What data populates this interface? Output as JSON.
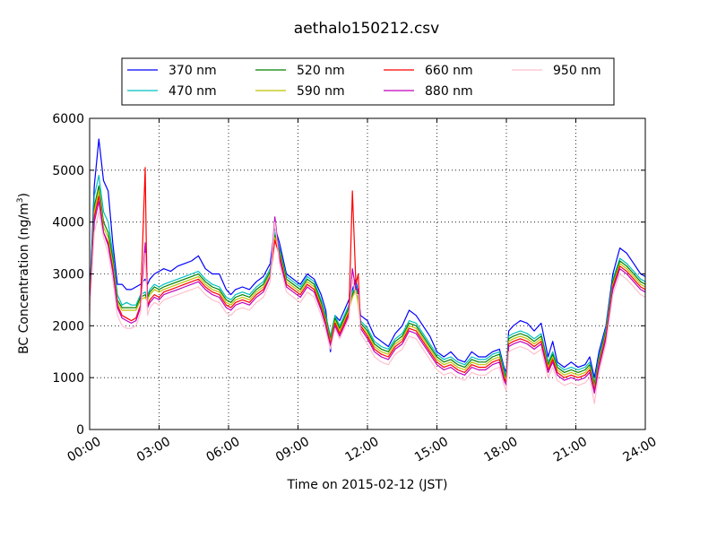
{
  "chart_data": {
    "type": "line",
    "title": "aethalo150212.csv",
    "xlabel": "Time on 2015-02-12 (JST)",
    "ylabel_main": "BC Concentration (ng/m",
    "ylabel_sup": "3",
    "ylabel_close": ")",
    "x_unit": "hours since 00:00",
    "xlim": [
      0,
      24
    ],
    "ylim": [
      0,
      6000
    ],
    "xticks": [
      {
        "value": 0,
        "label": "00:00"
      },
      {
        "value": 3,
        "label": "03:00"
      },
      {
        "value": 6,
        "label": "06:00"
      },
      {
        "value": 9,
        "label": "09:00"
      },
      {
        "value": 12,
        "label": "12:00"
      },
      {
        "value": 15,
        "label": "15:00"
      },
      {
        "value": 18,
        "label": "18:00"
      },
      {
        "value": 21,
        "label": "21:00"
      },
      {
        "value": 24,
        "label": "24:00"
      }
    ],
    "yticks": [
      {
        "value": 0,
        "label": "0"
      },
      {
        "value": 1000,
        "label": "1000"
      },
      {
        "value": 2000,
        "label": "2000"
      },
      {
        "value": 3000,
        "label": "3000"
      },
      {
        "value": 4000,
        "label": "4000"
      },
      {
        "value": 5000,
        "label": "5000"
      },
      {
        "value": 6000,
        "label": "6000"
      }
    ],
    "grid": true,
    "legend_position": "top",
    "x": [
      0,
      0.2,
      0.4,
      0.6,
      0.8,
      1.0,
      1.2,
      1.4,
      1.6,
      1.8,
      2.0,
      2.2,
      2.4,
      2.45,
      2.5,
      2.6,
      2.8,
      3.0,
      3.2,
      3.5,
      3.8,
      4.1,
      4.4,
      4.7,
      5.0,
      5.3,
      5.6,
      5.9,
      6.1,
      6.3,
      6.6,
      6.9,
      7.2,
      7.5,
      7.8,
      8.0,
      8.2,
      8.5,
      8.8,
      9.1,
      9.4,
      9.7,
      10.0,
      10.2,
      10.4,
      10.6,
      10.8,
      11.0,
      11.2,
      11.35,
      11.5,
      11.6,
      11.7,
      12.0,
      12.3,
      12.6,
      12.9,
      13.2,
      13.5,
      13.8,
      14.1,
      14.4,
      14.7,
      15.0,
      15.3,
      15.6,
      15.9,
      16.2,
      16.5,
      16.8,
      17.1,
      17.4,
      17.7,
      17.9,
      18.0,
      18.1,
      18.3,
      18.6,
      18.9,
      19.2,
      19.5,
      19.8,
      20.0,
      20.2,
      20.5,
      20.8,
      21.1,
      21.4,
      21.6,
      21.8,
      22.0,
      22.3,
      22.6,
      22.9,
      23.2,
      23.5,
      23.8,
      24.0
    ],
    "series": [
      {
        "name": "370 nm",
        "color": "#0000ff",
        "values": [
          2500,
          4700,
          5600,
          4800,
          4600,
          3600,
          2800,
          2800,
          2700,
          2700,
          2750,
          2800,
          2900,
          2850,
          2800,
          2900,
          3000,
          3050,
          3100,
          3050,
          3150,
          3200,
          3250,
          3350,
          3100,
          3000,
          3000,
          2700,
          2600,
          2700,
          2750,
          2700,
          2850,
          2950,
          3200,
          3900,
          3600,
          3000,
          2900,
          2800,
          3000,
          2900,
          2600,
          2300,
          1500,
          2200,
          2100,
          2300,
          2500,
          2700,
          2900,
          2600,
          2200,
          2100,
          1800,
          1700,
          1600,
          1850,
          2000,
          2300,
          2200,
          2000,
          1800,
          1500,
          1400,
          1500,
          1350,
          1300,
          1500,
          1400,
          1400,
          1500,
          1550,
          1200,
          1100,
          1900,
          2000,
          2100,
          2050,
          1900,
          2050,
          1400,
          1700,
          1300,
          1200,
          1300,
          1200,
          1250,
          1400,
          1000,
          1500,
          2000,
          3000,
          3500,
          3400,
          3200,
          3000,
          2950
        ]
      },
      {
        "name": "470 nm",
        "color": "#00bfbf",
        "values": [
          2400,
          4500,
          4900,
          4200,
          4000,
          3400,
          2600,
          2400,
          2450,
          2400,
          2400,
          2600,
          2650,
          2600,
          2600,
          2700,
          2800,
          2750,
          2800,
          2850,
          2900,
          2950,
          3000,
          3050,
          2900,
          2800,
          2750,
          2550,
          2500,
          2600,
          2650,
          2600,
          2750,
          2850,
          3100,
          3800,
          3500,
          2950,
          2850,
          2750,
          2950,
          2850,
          2500,
          2200,
          1800,
          2200,
          2000,
          2200,
          2400,
          2650,
          2800,
          2500,
          2100,
          1950,
          1700,
          1600,
          1550,
          1750,
          1850,
          2100,
          2050,
          1850,
          1650,
          1450,
          1350,
          1400,
          1300,
          1250,
          1400,
          1350,
          1350,
          1450,
          1500,
          1150,
          1050,
          1800,
          1850,
          1900,
          1850,
          1750,
          1850,
          1300,
          1500,
          1250,
          1150,
          1200,
          1150,
          1200,
          1300,
          900,
          1400,
          1950,
          2900,
          3300,
          3200,
          3050,
          2900,
          2850
        ]
      },
      {
        "name": "520 nm",
        "color": "#008000",
        "values": [
          2400,
          4300,
          4700,
          4000,
          3800,
          3300,
          2500,
          2350,
          2350,
          2350,
          2350,
          2550,
          2600,
          2550,
          2550,
          2650,
          2750,
          2700,
          2750,
          2800,
          2850,
          2900,
          2950,
          3000,
          2850,
          2750,
          2700,
          2500,
          2450,
          2550,
          2600,
          2550,
          2700,
          2800,
          3050,
          3750,
          3450,
          2900,
          2800,
          2700,
          2900,
          2800,
          2450,
          2150,
          1750,
          2150,
          1950,
          2150,
          2350,
          2600,
          2750,
          2450,
          2050,
          1900,
          1650,
          1550,
          1500,
          1700,
          1800,
          2050,
          2000,
          1800,
          1600,
          1400,
          1300,
          1350,
          1250,
          1200,
          1350,
          1300,
          1300,
          1400,
          1450,
          1100,
          1000,
          1750,
          1800,
          1850,
          1800,
          1700,
          1800,
          1250,
          1450,
          1200,
          1100,
          1150,
          1100,
          1150,
          1250,
          850,
          1350,
          1900,
          2850,
          3250,
          3150,
          3000,
          2850,
          2800
        ]
      },
      {
        "name": "590 nm",
        "color": "#bfbf00",
        "values": [
          2350,
          4200,
          4600,
          3900,
          3700,
          3200,
          2450,
          2300,
          2300,
          2300,
          2300,
          2500,
          2550,
          2500,
          2500,
          2600,
          2700,
          2650,
          2700,
          2750,
          2800,
          2850,
          2900,
          2950,
          2800,
          2700,
          2650,
          2450,
          2400,
          2500,
          2550,
          2500,
          2650,
          2750,
          3000,
          3700,
          3400,
          2850,
          2750,
          2650,
          2850,
          2750,
          2400,
          2100,
          1700,
          2100,
          1900,
          2100,
          2300,
          2550,
          2700,
          2400,
          2000,
          1850,
          1600,
          1500,
          1450,
          1650,
          1750,
          2000,
          1950,
          1750,
          1550,
          1350,
          1250,
          1300,
          1200,
          1150,
          1300,
          1250,
          1250,
          1350,
          1400,
          1050,
          950,
          1700,
          1750,
          1800,
          1750,
          1650,
          1750,
          1200,
          1400,
          1150,
          1050,
          1100,
          1050,
          1100,
          1200,
          800,
          1300,
          1850,
          2800,
          3200,
          3100,
          2950,
          2800,
          2750
        ]
      },
      {
        "name": "660 nm",
        "color": "#ff0000",
        "values": [
          2350,
          4100,
          4500,
          3800,
          3600,
          3100,
          2400,
          2200,
          2150,
          2100,
          2150,
          2400,
          5050,
          3500,
          2400,
          2500,
          2600,
          2550,
          2650,
          2700,
          2750,
          2800,
          2850,
          2900,
          2750,
          2650,
          2600,
          2400,
          2350,
          2450,
          2500,
          2450,
          2600,
          2700,
          2950,
          3650,
          3350,
          2800,
          2700,
          2600,
          2800,
          2700,
          2350,
          2050,
          1650,
          2050,
          1850,
          2050,
          2250,
          4600,
          2800,
          3000,
          2000,
          1800,
          1550,
          1450,
          1400,
          1600,
          1700,
          1950,
          1900,
          1700,
          1500,
          1300,
          1200,
          1250,
          1150,
          1100,
          1250,
          1200,
          1200,
          1300,
          1350,
          1000,
          900,
          1650,
          1700,
          1750,
          1700,
          1600,
          1700,
          1150,
          1350,
          1100,
          1000,
          1050,
          1000,
          1050,
          1150,
          750,
          1250,
          1800,
          2750,
          3150,
          3050,
          2900,
          2750,
          2700
        ]
      },
      {
        "name": "880 nm",
        "color": "#bf00bf",
        "values": [
          2300,
          4000,
          4400,
          3800,
          3550,
          3050,
          2350,
          2150,
          2100,
          2050,
          2100,
          2350,
          3600,
          3000,
          2350,
          2450,
          2550,
          2500,
          2600,
          2650,
          2700,
          2750,
          2800,
          2850,
          2700,
          2600,
          2550,
          2350,
          2300,
          2400,
          2450,
          2400,
          2550,
          2650,
          2950,
          4100,
          3300,
          2750,
          2650,
          2550,
          2750,
          2650,
          2300,
          2000,
          1600,
          2000,
          1800,
          2000,
          2200,
          3100,
          2700,
          2700,
          1950,
          1750,
          1500,
          1400,
          1350,
          1550,
          1650,
          1900,
          1850,
          1650,
          1450,
          1250,
          1150,
          1200,
          1100,
          1050,
          1200,
          1150,
          1150,
          1250,
          1300,
          950,
          850,
          1600,
          1650,
          1700,
          1650,
          1550,
          1650,
          1100,
          1300,
          1050,
          950,
          1000,
          950,
          1000,
          1100,
          700,
          1200,
          1750,
          2700,
          3100,
          3000,
          2850,
          2700,
          2650
        ]
      },
      {
        "name": "950 nm",
        "color": "#ffc0cb",
        "values": [
          2200,
          3800,
          4200,
          3700,
          3400,
          2900,
          2200,
          2000,
          1950,
          1950,
          2000,
          2250,
          3400,
          2800,
          2200,
          2350,
          2450,
          2400,
          2500,
          2550,
          2600,
          2650,
          2700,
          2750,
          2600,
          2500,
          2450,
          2250,
          2200,
          2300,
          2350,
          2300,
          2450,
          2550,
          2850,
          4000,
          3200,
          2650,
          2550,
          2450,
          2650,
          2550,
          2200,
          1900,
          1550,
          1950,
          1750,
          1950,
          2150,
          2900,
          2600,
          2600,
          1850,
          1650,
          1400,
          1300,
          1250,
          1450,
          1550,
          1800,
          1750,
          1550,
          1350,
          1150,
          1050,
          1100,
          1000,
          950,
          1100,
          1050,
          1050,
          1150,
          1200,
          850,
          750,
          1500,
          1550,
          1600,
          1550,
          1450,
          1550,
          1000,
          1200,
          950,
          850,
          900,
          850,
          900,
          1000,
          500,
          1100,
          1650,
          2600,
          3000,
          2900,
          2750,
          2600,
          2550
        ]
      }
    ]
  }
}
